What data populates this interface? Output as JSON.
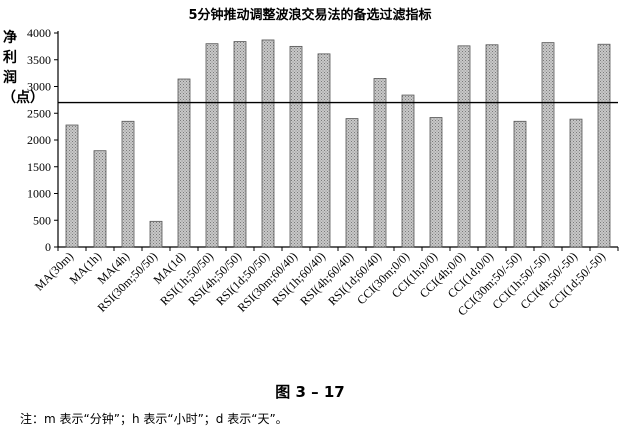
{
  "chart_data": {
    "type": "bar",
    "title": "5分钟推动调整波浪交易法的备选过滤指标",
    "ylabel": "净利润（点）",
    "ylim": [
      0,
      4000
    ],
    "yticks": [
      0,
      500,
      1000,
      1500,
      2000,
      2500,
      3000,
      3500,
      4000
    ],
    "reference_line": 2700,
    "grid": false,
    "categories": [
      "MA(30m)",
      "MA(1h)",
      "MA(4h)",
      "RSI(30m;50/50)",
      "MA(1d)",
      "RSI(1h;50/50)",
      "RSI(4h;50/50)",
      "RSI(1d;50/50)",
      "RSI(30m;60/40)",
      "RSI(1h;60/40)",
      "RSI(4h;60/40)",
      "RSI(1d;60/40)",
      "CCI(30m;0/0)",
      "CCI(1h;0/0)",
      "CCI(4h;0/0)",
      "CCI(1d;0/0)",
      "CCI(30m;50/-50)",
      "CCI(1h;50/-50)",
      "CCI(4h;50/-50)",
      "CCI(1d;50/-50)"
    ],
    "values": [
      2280,
      1800,
      2350,
      480,
      3140,
      3800,
      3840,
      3870,
      3750,
      3610,
      2400,
      3150,
      2840,
      2420,
      3760,
      3780,
      2350,
      3820,
      2390,
      3790
    ],
    "bar_color": "#b5b5b5"
  },
  "figure_label": "图 3 – 17",
  "note": "注：m 表示“分钟”；h 表示“小时”；d 表示“天”。"
}
